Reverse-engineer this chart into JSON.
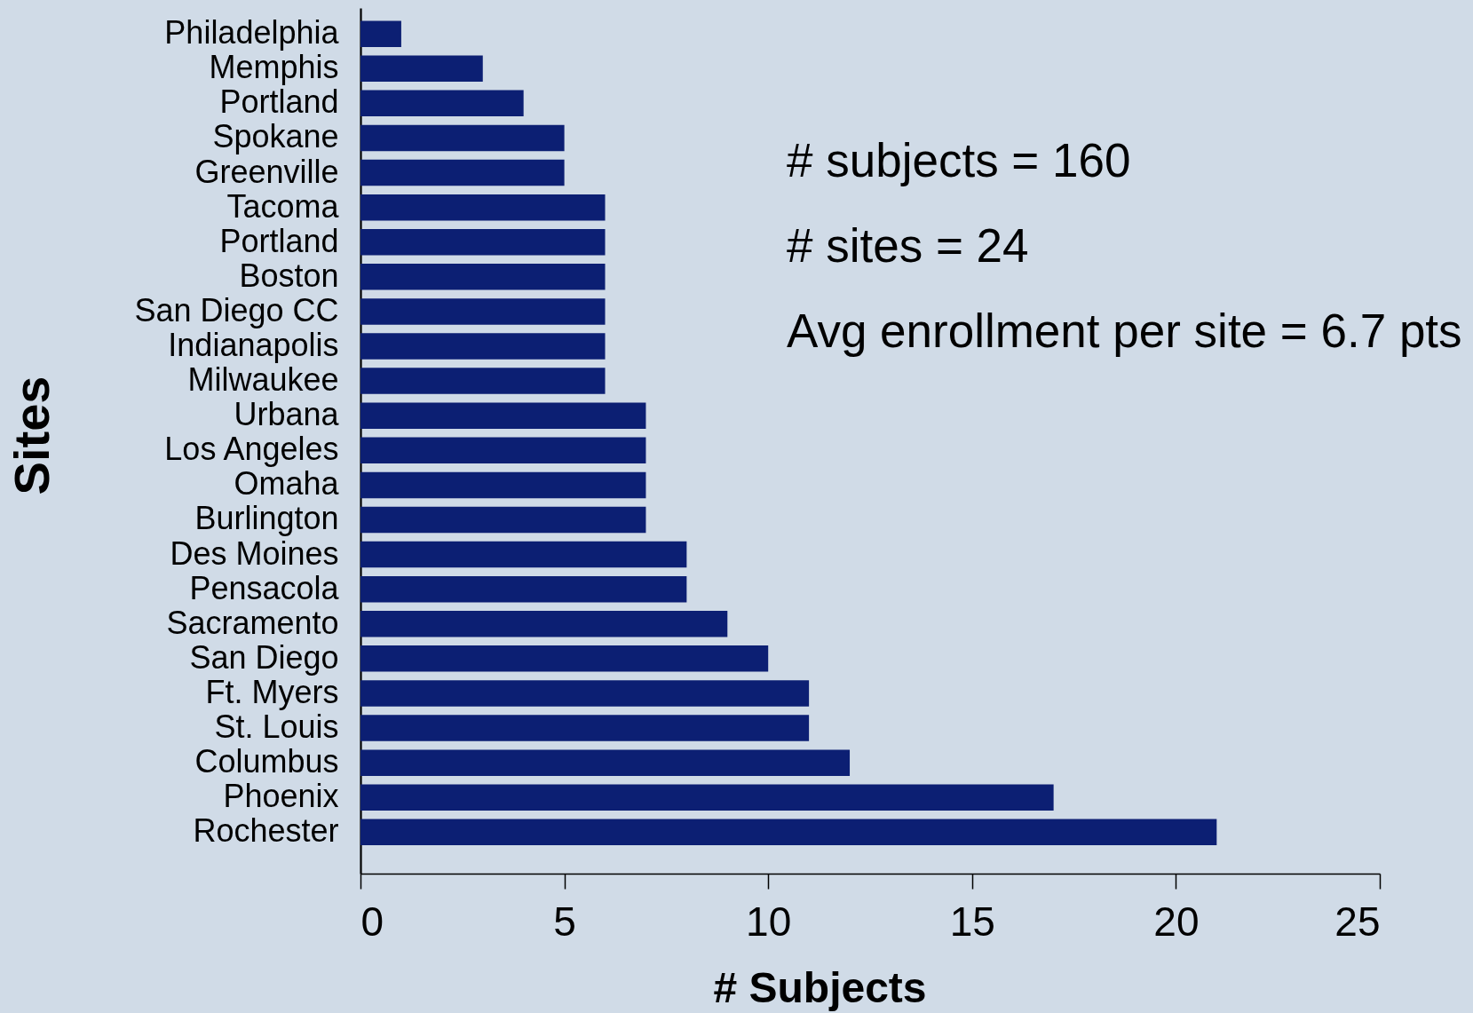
{
  "chart_data": {
    "type": "bar",
    "orientation": "horizontal",
    "xlabel": "# Subjects",
    "ylabel": "Sites",
    "categories": [
      "Philadelphia",
      "Memphis",
      "Portland",
      "Spokane",
      "Greenville",
      "Tacoma",
      "Portland",
      "Boston",
      "San Diego CC",
      "Indianapolis",
      "Milwaukee",
      "Urbana",
      "Los Angeles",
      "Omaha",
      "Burlington",
      "Des Moines",
      "Pensacola",
      "Sacramento",
      "San Diego",
      "Ft. Myers",
      "St. Louis",
      "Columbus",
      "Phoenix",
      "Rochester"
    ],
    "values": [
      1,
      3,
      4,
      5,
      5,
      6,
      6,
      6,
      6,
      6,
      6,
      7,
      7,
      7,
      7,
      8,
      8,
      9,
      10,
      11,
      11,
      12,
      17,
      21
    ],
    "color": "#0c1f73",
    "xlim": [
      0,
      25
    ],
    "xticks": [
      0,
      5,
      10,
      15,
      20,
      25
    ],
    "grid": false,
    "annotations": [
      "# subjects = 160",
      "# sites = 24",
      "Avg enrollment per site = 6.7 pts"
    ]
  }
}
